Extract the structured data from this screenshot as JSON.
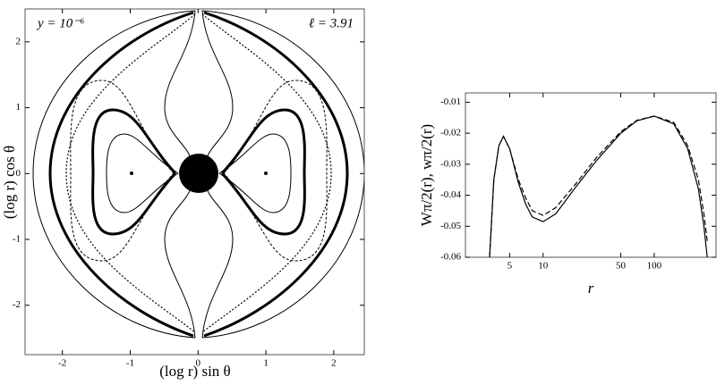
{
  "chart_data": [
    {
      "type": "contour",
      "annotations": [
        "y = 10⁻⁶",
        "ℓ = 3.91"
      ],
      "x_label": "(log r) sin θ",
      "y_label": "(log r) cos θ",
      "xlim": [
        -2.55,
        2.45
      ],
      "ylim": [
        -2.75,
        2.5
      ],
      "xticks": [
        -2,
        -1,
        0,
        1,
        2
      ],
      "yticks": [
        -2,
        -1,
        0,
        1,
        2
      ]
    },
    {
      "type": "line",
      "x_label": "r",
      "y_label": "Wπ/2(r), wπ/2(r)",
      "log_x": true,
      "x": [
        3.3,
        3.6,
        4,
        4.4,
        5,
        6,
        7,
        8,
        10,
        13,
        20,
        30,
        50,
        70,
        100,
        150,
        200,
        250,
        280,
        300
      ],
      "series": [
        {
          "color": "#000000",
          "dash": false,
          "values": [
            -0.06,
            -0.035,
            -0.024,
            -0.021,
            -0.025,
            -0.036,
            -0.043,
            -0.047,
            -0.0485,
            -0.046,
            -0.037,
            -0.029,
            -0.02,
            -0.016,
            -0.0145,
            -0.017,
            -0.025,
            -0.038,
            -0.05,
            -0.06
          ]
        },
        {
          "color": "#000000",
          "dash": true,
          "values": [
            -0.06,
            -0.035,
            -0.024,
            -0.021,
            -0.025,
            -0.035,
            -0.041,
            -0.045,
            -0.0465,
            -0.044,
            -0.036,
            -0.028,
            -0.0195,
            -0.0158,
            -0.0145,
            -0.0165,
            -0.024,
            -0.035,
            -0.046,
            -0.055
          ]
        }
      ],
      "xlim": [
        2,
        360
      ],
      "ylim": [
        -0.06,
        -0.007
      ],
      "xticks": [
        5,
        10,
        50,
        100
      ],
      "yticks": [
        -0.06,
        -0.05,
        -0.04,
        -0.03,
        -0.02,
        -0.01
      ]
    }
  ]
}
